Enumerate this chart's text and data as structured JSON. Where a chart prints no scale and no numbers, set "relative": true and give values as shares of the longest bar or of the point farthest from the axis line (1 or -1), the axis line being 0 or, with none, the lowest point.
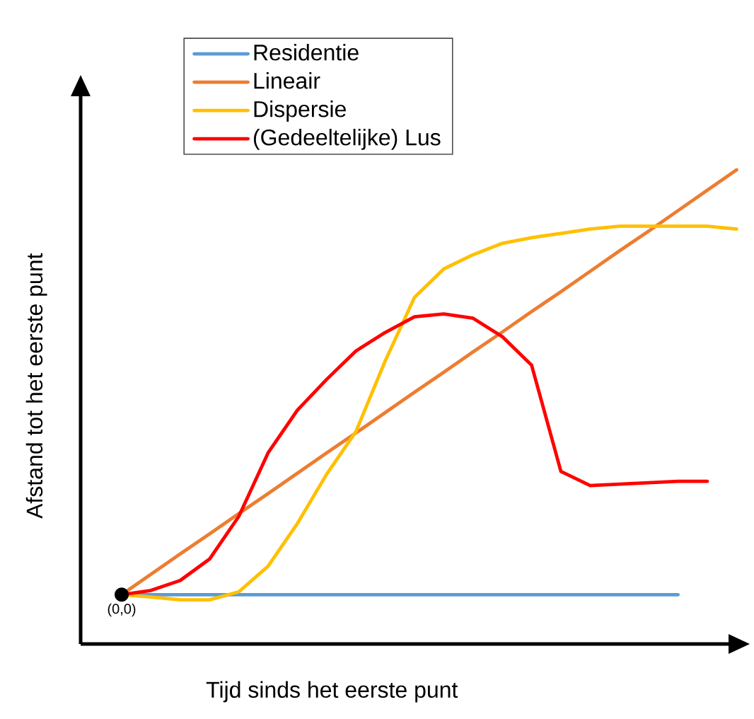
{
  "chart_data": {
    "type": "line",
    "relative": true,
    "xlabel": "Tijd sinds het eerste punt",
    "ylabel": "Afstand tot het eerste punt",
    "categories": [
      null,
      null,
      null,
      null,
      null,
      null,
      null,
      null,
      null,
      null,
      null,
      null,
      null,
      null,
      null,
      null,
      null,
      null,
      null,
      null,
      null,
      null
    ],
    "series": [
      {
        "name": "Residentie",
        "color": "#5b9bd5",
        "values": [
          0.104,
          0.104,
          0.104,
          0.104,
          0.104,
          0.104,
          0.104,
          0.104,
          0.104,
          0.104,
          0.104,
          0.104,
          0.104,
          0.104,
          0.104,
          0.104,
          0.104,
          0.104,
          0.104,
          0.104,
          null,
          null
        ]
      },
      {
        "name": "Lineair",
        "color": "#ed7d31",
        "values": [
          0.104,
          0.147,
          0.19,
          0.232,
          0.275,
          0.317,
          0.36,
          0.403,
          0.445,
          0.488,
          0.531,
          0.573,
          0.616,
          0.658,
          0.701,
          0.743,
          0.786,
          0.829,
          0.871,
          0.914,
          0.957,
          1.0
        ]
      },
      {
        "name": "Dispersie",
        "color": "#ffc000",
        "values": [
          0.104,
          0.099,
          0.093,
          0.093,
          0.11,
          0.164,
          0.254,
          0.358,
          0.448,
          0.597,
          0.731,
          0.791,
          0.821,
          0.845,
          0.857,
          0.866,
          0.875,
          0.881,
          0.881,
          0.881,
          0.881,
          0.875
        ]
      },
      {
        "name": "(Gedeeltelijke) Lus",
        "color": "#ff0000",
        "values": [
          0.104,
          0.113,
          0.134,
          0.179,
          0.269,
          0.403,
          0.493,
          0.558,
          0.618,
          0.657,
          0.69,
          0.696,
          0.687,
          0.648,
          0.588,
          0.364,
          0.334,
          0.337,
          0.34,
          0.343,
          0.343,
          null
        ]
      }
    ],
    "legend": "top",
    "annotations": [
      {
        "text": "(0,0)",
        "y": 0.104
      }
    ]
  }
}
